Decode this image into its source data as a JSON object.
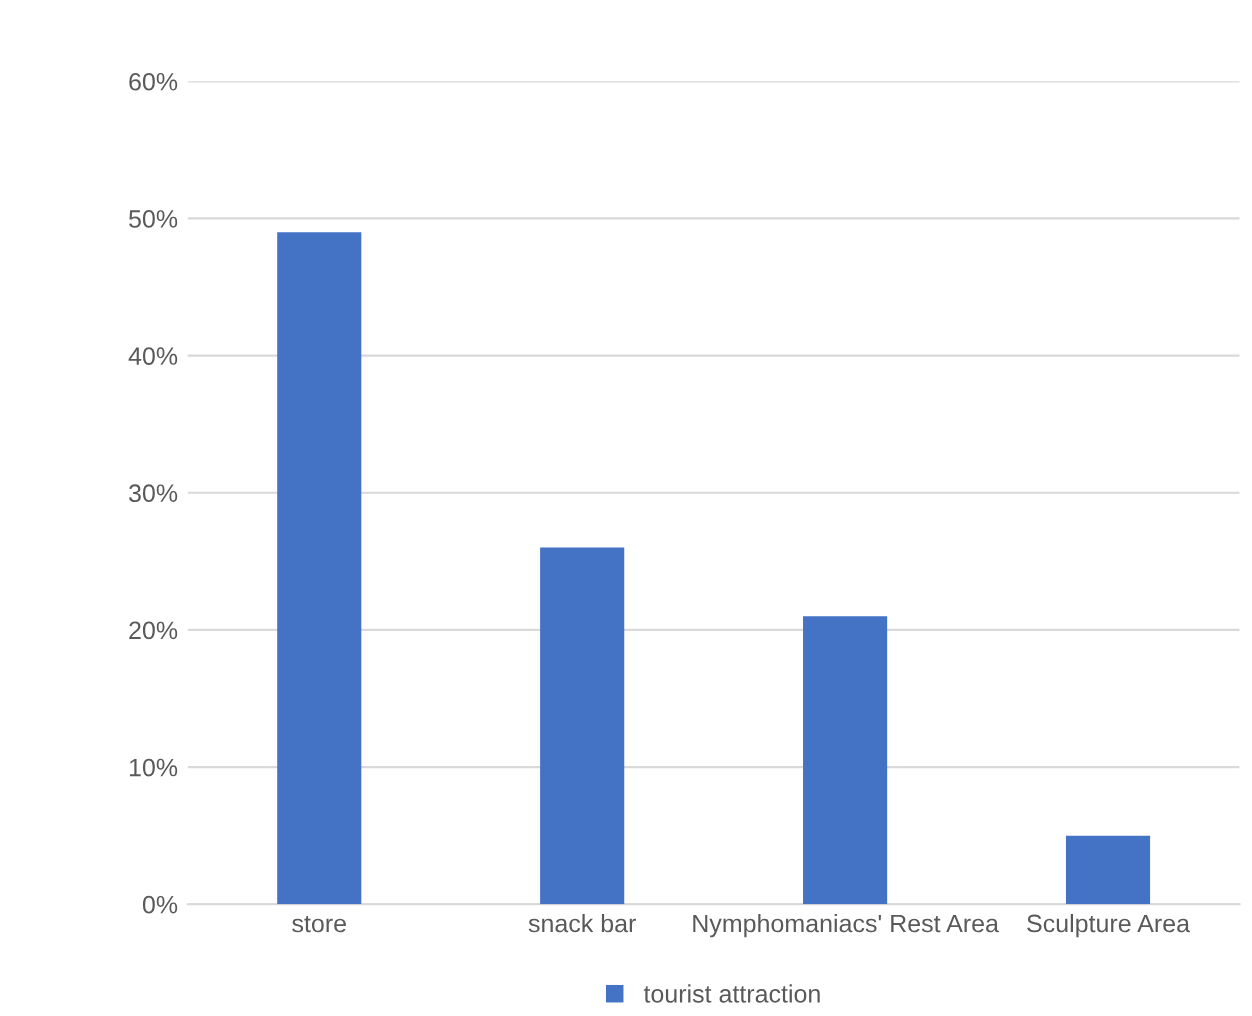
{
  "chart_data": {
    "type": "bar",
    "categories": [
      "store",
      "snack bar",
      "Nymphomaniacs' Rest Area",
      "Sculpture Area"
    ],
    "series": [
      {
        "name": "tourist attraction",
        "color": "#4472c4",
        "values": [
          49,
          26,
          21,
          5
        ]
      }
    ],
    "ylim": [
      0,
      60
    ],
    "yticks": [
      {
        "value": 0,
        "label": "0%"
      },
      {
        "value": 10,
        "label": "10%"
      },
      {
        "value": 20,
        "label": "20%"
      },
      {
        "value": 30,
        "label": "30%"
      },
      {
        "value": 40,
        "label": "40%"
      },
      {
        "value": 50,
        "label": "50%"
      },
      {
        "value": 60,
        "label": "60%"
      }
    ],
    "grid": "y",
    "legend": "bottom"
  }
}
